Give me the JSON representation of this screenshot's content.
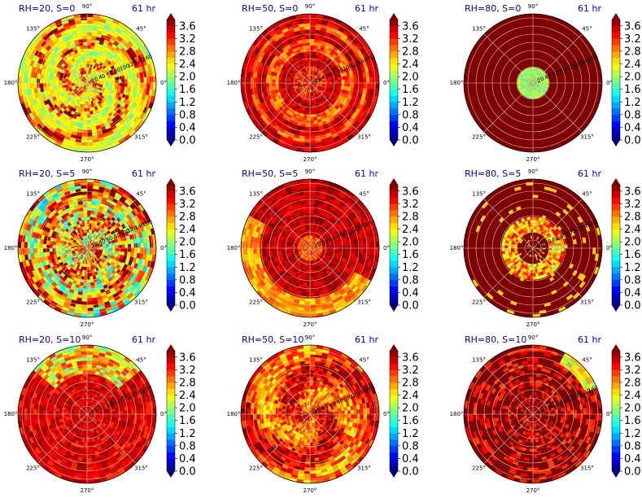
{
  "figure": {
    "time_label": "61 hr",
    "angle_labels": [
      "0°",
      "45°",
      "90°",
      "135°",
      "180°",
      "225°",
      "270°",
      "315°"
    ],
    "radial_labels": [
      "20",
      "40",
      "60",
      "80",
      "100",
      "120",
      "140",
      "160"
    ],
    "colors": {
      "background": "#800000",
      "title": "#0000cc",
      "grid": "#c8c8c8"
    }
  },
  "chart_data": [
    {
      "type": "heatmap",
      "projection": "polar",
      "title": "RH=20, S=0",
      "time": "61 hr",
      "texture": "mixed-streaky",
      "clim": [
        0.0,
        3.8
      ]
    },
    {
      "type": "heatmap",
      "projection": "polar",
      "title": "RH=50, S=0",
      "time": "61 hr",
      "texture": "ring",
      "clim": [
        0.0,
        3.8
      ]
    },
    {
      "type": "heatmap",
      "projection": "polar",
      "title": "RH=80, S=0",
      "time": "61 hr",
      "texture": "center-blob",
      "clim": [
        0.0,
        3.8
      ]
    },
    {
      "type": "heatmap",
      "projection": "polar",
      "title": "RH=20, S=5",
      "time": "61 hr",
      "texture": "mixed-bright",
      "clim": [
        0.0,
        3.8
      ]
    },
    {
      "type": "heatmap",
      "projection": "polar",
      "title": "RH=50, S=5",
      "time": "61 hr",
      "texture": "arc-southwest",
      "clim": [
        0.0,
        3.8
      ]
    },
    {
      "type": "heatmap",
      "projection": "polar",
      "title": "RH=80, S=5",
      "time": "61 hr",
      "texture": "inner-ring",
      "clim": [
        0.0,
        3.8
      ]
    },
    {
      "type": "heatmap",
      "projection": "polar",
      "title": "RH=20, S=10",
      "time": "61 hr",
      "texture": "north-streaks",
      "clim": [
        0.0,
        3.8
      ]
    },
    {
      "type": "heatmap",
      "projection": "polar",
      "title": "RH=50, S=10",
      "time": "61 hr",
      "texture": "broad-orange",
      "clim": [
        0.0,
        3.8
      ]
    },
    {
      "type": "heatmap",
      "projection": "polar",
      "title": "RH=80, S=10",
      "time": "61 hr",
      "texture": "scattered",
      "clim": [
        0.0,
        3.8
      ]
    }
  ],
  "colorbar": {
    "ticks": [
      "3.6",
      "3.2",
      "2.8",
      "2.4",
      "2.0",
      "1.6",
      "1.2",
      "0.8",
      "0.4",
      "0.0"
    ],
    "tick_values": [
      3.6,
      3.2,
      2.8,
      2.4,
      2.0,
      1.6,
      1.2,
      0.8,
      0.4,
      0.0
    ],
    "levels": 19,
    "colormap": "jet",
    "range": [
      0.0,
      3.8
    ]
  }
}
